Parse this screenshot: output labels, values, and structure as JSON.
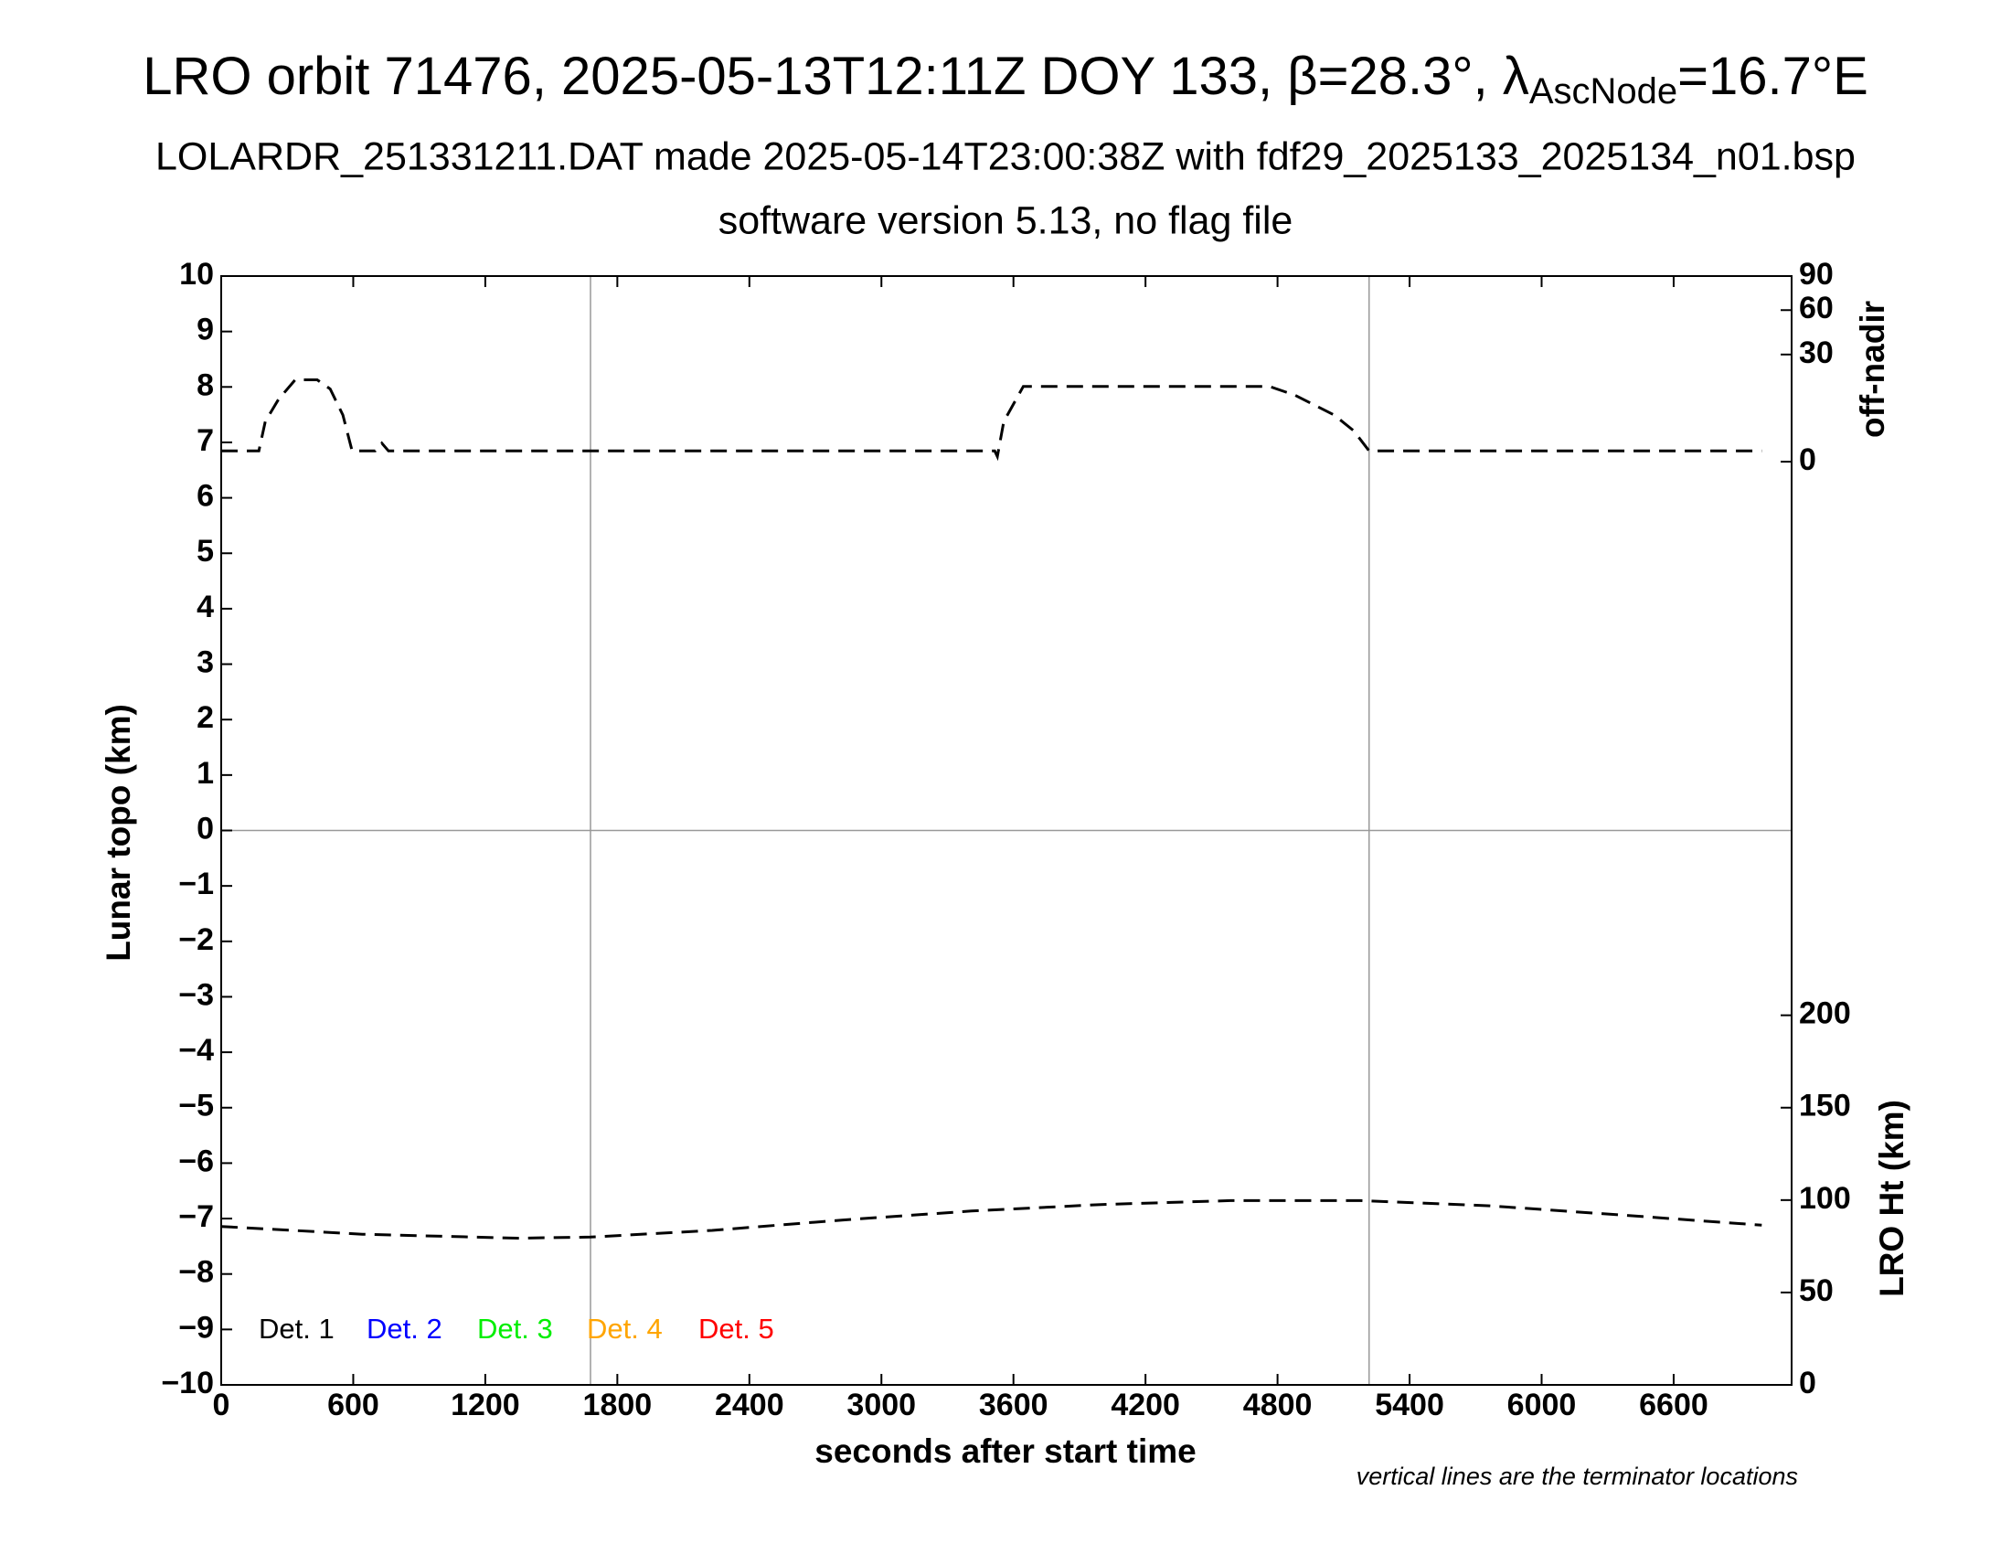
{
  "chart_data": {
    "type": "line",
    "title": [
      "LRO orbit 71476, 2025-05-13T12:11Z DOY 133, β=28.3°, λ",
      "AscNode",
      "=16.7°E"
    ],
    "subtitle": "LOLARDR_251331211.DAT made 2025-05-14T23:00:38Z with fdf29_2025133_2025134_n01.bsp",
    "subtitle2": "software version 5.13, no flag file",
    "xlabel": "seconds after start time",
    "ylabel": "Lunar topo (km)",
    "y2label": "off-nadir",
    "y3label": "LRO Ht (km)",
    "note": "vertical lines are the terminator locations",
    "xlim": [
      0,
      7136
    ],
    "xticks": [
      0,
      600,
      1200,
      1800,
      2400,
      3000,
      3600,
      4200,
      4800,
      5400,
      6000,
      6600
    ],
    "ylim": [
      -10,
      10
    ],
    "yticks": [
      {
        "value": -10,
        "label": "−10"
      },
      {
        "value": -9,
        "label": "−9"
      },
      {
        "value": -8,
        "label": "−8"
      },
      {
        "value": -7,
        "label": "−7"
      },
      {
        "value": -6,
        "label": "−6"
      },
      {
        "value": -5,
        "label": "−5"
      },
      {
        "value": -4,
        "label": "−4"
      },
      {
        "value": -3,
        "label": "−3"
      },
      {
        "value": -2,
        "label": "−2"
      },
      {
        "value": -1,
        "label": "−1"
      },
      0,
      1,
      2,
      3,
      4,
      5,
      6,
      7,
      8,
      9,
      10
    ],
    "y2lim": [
      0,
      90
    ],
    "y2scale": "sqrt",
    "y2ticks": [
      0,
      30,
      60,
      90
    ],
    "y3lim": [
      0,
      600
    ],
    "y3ticks": [
      0,
      50,
      100,
      150,
      200
    ],
    "terminators": [
      1678,
      5216
    ],
    "hlines": [
      0
    ],
    "series": [
      {
        "color": "#000000",
        "axis": "y2",
        "x": [
          0,
          171,
          200,
          260,
          336,
          436,
          495,
          553,
          595,
          700,
          730,
          760,
          3515,
          3527,
          3556,
          3645,
          4763,
          4881,
          5057,
          5146,
          5216,
          7000
        ],
        "values": [
          0.3,
          0.3,
          4.2,
          10.1,
          17.5,
          17.5,
          13.8,
          5.7,
          0.3,
          0.3,
          0.9,
          0.3,
          0.3,
          0.07,
          4.2,
          14.8,
          14.8,
          11.5,
          5.7,
          2.5,
          0.3,
          0.3
        ]
      },
      {
        "color": "#000000",
        "axis": "y3",
        "x": [
          0,
          642,
          1348,
          1678,
          2231,
          2820,
          3409,
          3998,
          4586,
          5175,
          5764,
          6353,
          7000
        ],
        "values": [
          85.7,
          81.5,
          79.4,
          80,
          83.6,
          89.2,
          94.1,
          97.6,
          99.7,
          99.7,
          96.9,
          92,
          86.4
        ]
      }
    ],
    "legend": [
      {
        "label": "Det. 1",
        "color": "#000000"
      },
      {
        "label": "Det. 2",
        "color": "#0000ff"
      },
      {
        "label": "Det. 3",
        "color": "#00ee00"
      },
      {
        "label": "Det. 4",
        "color": "#ffa500"
      },
      {
        "label": "Det. 5",
        "color": "#ff0000"
      }
    ]
  }
}
